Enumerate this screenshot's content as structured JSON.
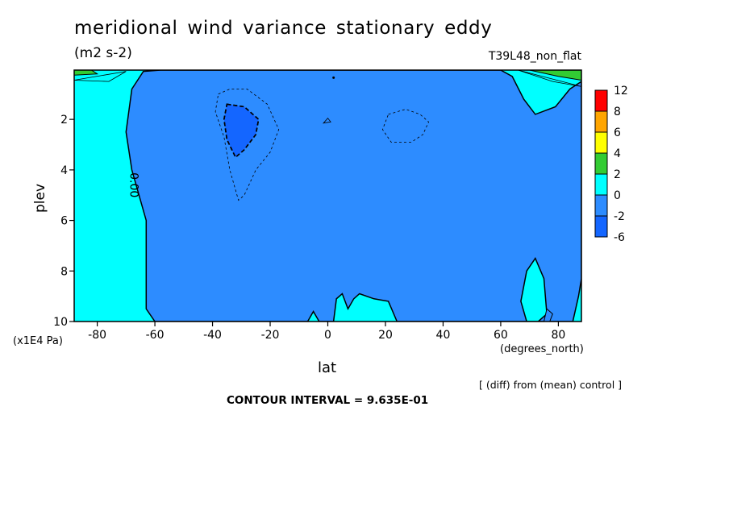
{
  "header": {
    "title": "meridional wind variance  stationary eddy",
    "units": "(m2 s-2)",
    "run": "T39L48_non_flat"
  },
  "footer": {
    "vertical_unit": "(x1E4 Pa)",
    "x_unit": "(degrees_north)",
    "diff_note": "[ (diff) from (mean) control ]",
    "contour_interval": "CONTOUR INTERVAL = 9.635E-01"
  },
  "chart_data": {
    "type": "contour",
    "xlabel": "lat",
    "ylabel": "plev",
    "xlim": [
      -88,
      88
    ],
    "ylim": [
      0.05,
      10
    ],
    "y_inverted": true,
    "x_ticks": [
      -80,
      -60,
      -40,
      -20,
      0,
      20,
      40,
      60,
      80
    ],
    "y_ticks": [
      2,
      4,
      6,
      8,
      10
    ],
    "zero_contour_label": "0.00",
    "colorbar": {
      "levels": [
        -6,
        -2,
        0,
        2,
        4,
        6,
        8,
        12
      ],
      "colors": [
        "#1466ff",
        "#2d8cff",
        "#00ffff",
        "#33cc33",
        "#ffff00",
        "#ffa500",
        "#ff0000"
      ]
    },
    "regions": [
      {
        "range": [
          -2,
          0
        ],
        "color": "#2d8cff",
        "polygon": [
          [
            -60,
            10
          ],
          [
            -63,
            9.5
          ],
          [
            -63,
            6
          ],
          [
            -68,
            4
          ],
          [
            -70,
            2.5
          ],
          [
            -68,
            0.8
          ],
          [
            -64,
            0.1
          ],
          [
            -58,
            0.05
          ],
          [
            60,
            0.05
          ],
          [
            64,
            0.3
          ],
          [
            68,
            1.2
          ],
          [
            72,
            1.8
          ],
          [
            79,
            1.5
          ],
          [
            84,
            0.8
          ],
          [
            88,
            0.5
          ],
          [
            88,
            8.3
          ],
          [
            87,
            9
          ],
          [
            85,
            10
          ],
          [
            24,
            10
          ],
          [
            21,
            9.2
          ],
          [
            16,
            9.1
          ],
          [
            11,
            8.9
          ],
          [
            9,
            9.1
          ],
          [
            7,
            9.5
          ],
          [
            5,
            8.9
          ],
          [
            3,
            9.1
          ],
          [
            2,
            10
          ],
          [
            -3,
            10
          ],
          [
            -5,
            9.6
          ],
          [
            -7,
            10
          ]
        ]
      },
      {
        "range": [
          -6,
          -2
        ],
        "color": "#1466ff",
        "polygon": [
          [
            -35,
            1.4
          ],
          [
            -29,
            1.5
          ],
          [
            -24,
            2
          ],
          [
            -25,
            2.6
          ],
          [
            -29,
            3.2
          ],
          [
            -32,
            3.5
          ],
          [
            -35,
            2.8
          ],
          [
            -36,
            2
          ]
        ]
      },
      {
        "range": [
          0,
          2
        ],
        "color": "#00ffff",
        "polygon": [
          [
            72,
            7.5
          ],
          [
            75,
            8.3
          ],
          [
            76,
            9.7
          ],
          [
            73,
            10
          ],
          [
            69,
            10
          ],
          [
            67,
            9.2
          ],
          [
            69,
            8
          ]
        ]
      }
    ],
    "contours": [
      {
        "level": -0.96,
        "style": "dashed",
        "points": [
          [
            -38,
            1.0
          ],
          [
            -34,
            0.8
          ],
          [
            -28,
            0.8
          ],
          [
            -21,
            1.4
          ],
          [
            -17,
            2.4
          ],
          [
            -20,
            3.3
          ],
          [
            -25,
            4
          ],
          [
            -29,
            5
          ],
          [
            -31,
            5.2
          ],
          [
            -34,
            4
          ],
          [
            -36,
            2.7
          ],
          [
            -39,
            1.7
          ]
        ]
      },
      {
        "level": -0.96,
        "style": "dashed",
        "points": [
          [
            21,
            1.8
          ],
          [
            27,
            1.6
          ],
          [
            32,
            1.8
          ],
          [
            35,
            2.1
          ],
          [
            33,
            2.6
          ],
          [
            29,
            2.9
          ],
          [
            22,
            2.9
          ],
          [
            19,
            2.4
          ]
        ]
      },
      {
        "level": -1.93,
        "style": "dashed",
        "points": [
          [
            -35,
            1.4
          ],
          [
            -29,
            1.5
          ],
          [
            -24,
            2
          ],
          [
            -25,
            2.6
          ],
          [
            -29,
            3.2
          ],
          [
            -32,
            3.5
          ],
          [
            -35,
            2.8
          ],
          [
            -36,
            2
          ]
        ]
      },
      {
        "level": 0,
        "style": "solid",
        "points": [
          [
            -1.5,
            2.15
          ],
          [
            0,
            1.95
          ],
          [
            1,
            2.1
          ]
        ]
      },
      {
        "level": 1,
        "style": "solid",
        "points": [
          [
            -88,
            0.45
          ],
          [
            -76,
            0.5
          ],
          [
            -70,
            0.1
          ]
        ]
      },
      {
        "level": 1,
        "style": "solid",
        "points": [
          [
            66,
            0.05
          ],
          [
            78,
            0.5
          ],
          [
            88,
            0.7
          ]
        ]
      }
    ],
    "small_regions": [
      {
        "range": [
          2,
          4
        ],
        "color": "#33cc33",
        "polygon": [
          [
            -88,
            0.05
          ],
          [
            -82,
            0.05
          ],
          [
            -80,
            0.2
          ],
          [
            -88,
            0.25
          ]
        ]
      },
      {
        "range": [
          2,
          4
        ],
        "color": "#33cc33",
        "polygon": [
          [
            70,
            0.05
          ],
          [
            88,
            0.05
          ],
          [
            88,
            0.45
          ],
          [
            80,
            0.3
          ]
        ]
      },
      {
        "range": [
          -2,
          0
        ],
        "color": "#2d8cff",
        "polygon": [
          [
            76,
            9.5
          ],
          [
            78,
            9.7
          ],
          [
            77,
            10
          ],
          [
            75,
            10
          ]
        ]
      }
    ]
  }
}
